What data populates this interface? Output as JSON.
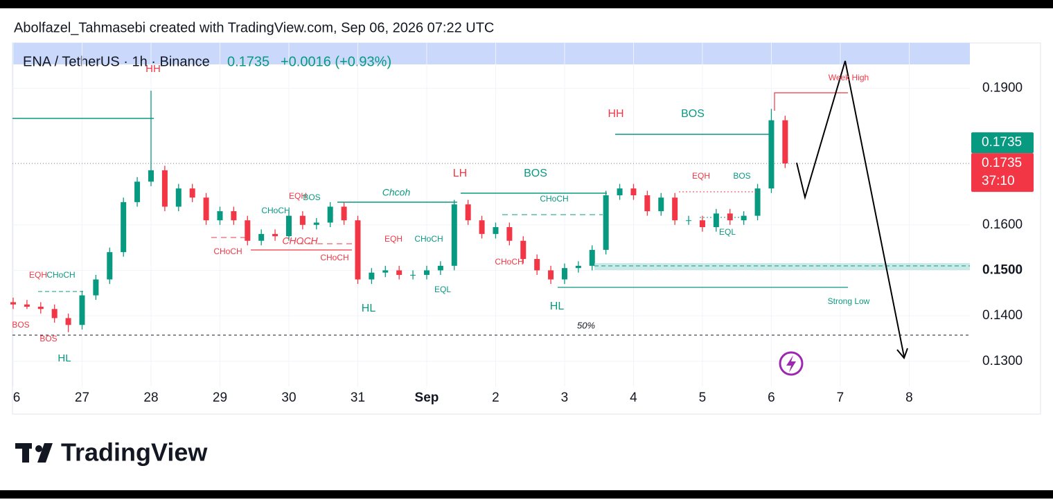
{
  "header": {
    "attribution": "Abolfazel_Tahmasebi created with TradingView.com, Sep 06, 2026 07:22 UTC",
    "symbol": "ENA / TetherUS · 1h · Binance",
    "price": "0.1735",
    "change": "+0.0016 (+0.93%)"
  },
  "chart_data": {
    "type": "candlestick",
    "x": [
      0,
      0.2,
      0.4,
      0.6,
      0.8,
      1,
      1.2,
      1.4,
      1.6,
      1.8,
      2,
      2.2,
      2.4,
      2.6,
      2.8,
      3,
      3.2,
      3.4,
      3.6,
      3.8,
      4,
      4.2,
      4.4,
      4.6,
      4.8,
      5,
      5.2,
      5.4,
      5.6,
      5.8,
      6,
      6.2,
      6.4,
      6.6,
      6.8,
      7,
      7.2,
      7.4,
      7.6,
      7.8,
      8,
      8.2,
      8.4,
      8.6,
      8.8,
      9,
      9.2,
      9.4,
      9.6,
      9.8,
      10,
      10.2,
      10.4,
      10.6,
      10.8,
      11,
      11.2
    ],
    "open": [
      0.143,
      0.1425,
      0.142,
      0.1415,
      0.1395,
      0.138,
      0.1445,
      0.148,
      0.154,
      0.165,
      0.1695,
      0.172,
      0.164,
      0.168,
      0.166,
      0.161,
      0.163,
      0.161,
      0.1565,
      0.158,
      0.1575,
      0.162,
      0.16,
      0.1605,
      0.164,
      0.161,
      0.148,
      0.1495,
      0.15,
      0.149,
      0.149,
      0.15,
      0.151,
      0.1645,
      0.161,
      0.158,
      0.1595,
      0.1565,
      0.1525,
      0.15,
      0.148,
      0.1505,
      0.151,
      0.1545,
      0.1665,
      0.168,
      0.1665,
      0.163,
      0.166,
      0.161,
      0.161,
      0.1595,
      0.1625,
      0.161,
      0.162,
      0.168,
      0.183
    ],
    "high": [
      0.144,
      0.1435,
      0.143,
      0.1425,
      0.1405,
      0.1455,
      0.149,
      0.155,
      0.166,
      0.1705,
      0.1895,
      0.173,
      0.169,
      0.169,
      0.167,
      0.164,
      0.164,
      0.162,
      0.159,
      0.159,
      0.163,
      0.163,
      0.1615,
      0.165,
      0.165,
      0.162,
      0.1505,
      0.151,
      0.151,
      0.15,
      0.151,
      0.152,
      0.1655,
      0.1655,
      0.162,
      0.1605,
      0.1605,
      0.1575,
      0.1535,
      0.151,
      0.1515,
      0.152,
      0.1555,
      0.1675,
      0.169,
      0.169,
      0.1675,
      0.167,
      0.167,
      0.162,
      0.162,
      0.1635,
      0.1635,
      0.163,
      0.169,
      0.1855,
      0.184
    ],
    "low": [
      0.1415,
      0.1415,
      0.1405,
      0.1385,
      0.1364,
      0.137,
      0.1435,
      0.147,
      0.153,
      0.164,
      0.1685,
      0.163,
      0.163,
      0.165,
      0.16,
      0.16,
      0.16,
      0.1555,
      0.1555,
      0.1565,
      0.1565,
      0.159,
      0.159,
      0.1595,
      0.16,
      0.147,
      0.147,
      0.1485,
      0.148,
      0.148,
      0.148,
      0.149,
      0.15,
      0.16,
      0.157,
      0.157,
      0.1555,
      0.1515,
      0.149,
      0.147,
      0.147,
      0.1495,
      0.15,
      0.1535,
      0.1655,
      0.1655,
      0.162,
      0.162,
      0.16,
      0.16,
      0.1585,
      0.1585,
      0.16,
      0.16,
      0.161,
      0.167,
      0.1725
    ],
    "close": [
      0.1425,
      0.142,
      0.1415,
      0.1395,
      0.138,
      0.1445,
      0.148,
      0.154,
      0.165,
      0.1695,
      0.172,
      0.164,
      0.168,
      0.166,
      0.161,
      0.163,
      0.161,
      0.1565,
      0.158,
      0.1575,
      0.162,
      0.16,
      0.1605,
      0.164,
      0.161,
      0.148,
      0.1495,
      0.15,
      0.149,
      0.149,
      0.15,
      0.151,
      0.1645,
      0.161,
      0.158,
      0.1595,
      0.1565,
      0.1525,
      0.15,
      0.148,
      0.1505,
      0.151,
      0.1545,
      0.1665,
      0.168,
      0.1665,
      0.163,
      0.166,
      0.161,
      0.161,
      0.1595,
      0.1625,
      0.161,
      0.162,
      0.168,
      0.183,
      0.1735
    ],
    "up_color": "#089981",
    "down_color": "#f23645",
    "xlim": [
      0,
      13.88
    ],
    "xticks": [
      {
        "value": 0,
        "label": "6"
      },
      {
        "value": 1,
        "label": "27"
      },
      {
        "value": 2,
        "label": "28"
      },
      {
        "value": 3,
        "label": "29"
      },
      {
        "value": 4,
        "label": "30"
      },
      {
        "value": 5,
        "label": "31"
      },
      {
        "value": 6,
        "label": "Sep"
      },
      {
        "value": 7,
        "label": "2"
      },
      {
        "value": 8,
        "label": "3"
      },
      {
        "value": 9,
        "label": "4"
      },
      {
        "value": 10,
        "label": "5"
      },
      {
        "value": 11,
        "label": "6"
      },
      {
        "value": 12,
        "label": "7"
      },
      {
        "value": 13,
        "label": "8"
      }
    ],
    "ylim": [
      0.1184,
      0.2
    ],
    "yticks": [
      {
        "value": 0.13,
        "label": "0.1300"
      },
      {
        "value": 0.14,
        "label": "0.1400"
      },
      {
        "value": 0.15,
        "label": "0.1500"
      },
      {
        "value": 0.16,
        "label": "0.1600"
      },
      {
        "value": 0.19,
        "label": "0.1900"
      }
    ],
    "grid": true,
    "last_price": 0.1735,
    "countdown": "37:10",
    "annotations": [
      "HH",
      "HL",
      "BOS",
      "BOS",
      "EQH",
      "CHoCH",
      "EQH",
      "BOS",
      "CHoCH",
      "CHoCH",
      "CHOCH",
      "CHoCH",
      "Chcoh",
      "LH",
      "BOS",
      "CHoCH",
      "EQH",
      "CHoCH",
      "EQL",
      "HL",
      "CHoCH",
      "HL",
      "50%",
      "HH",
      "BOS",
      "EQH",
      "BOS",
      "EQL",
      "Week High",
      "Strong Low"
    ]
  },
  "logo": "TradingView"
}
